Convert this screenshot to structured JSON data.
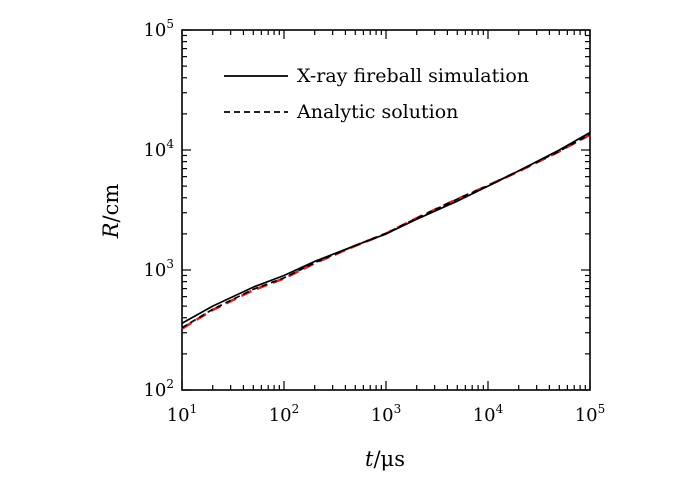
{
  "chart_data": {
    "type": "line",
    "xlabel_italic": "t",
    "xlabel_rest": "/μs",
    "ylabel_italic": "R",
    "ylabel_rest": "/cm",
    "x_scale": "log",
    "y_scale": "log",
    "xlim": [
      10,
      100000
    ],
    "ylim": [
      100,
      100000
    ],
    "grid": false,
    "legend_position": "top-left",
    "x_ticks": [
      {
        "base": "10",
        "exp": "1",
        "value": 10
      },
      {
        "base": "10",
        "exp": "2",
        "value": 100
      },
      {
        "base": "10",
        "exp": "3",
        "value": 1000
      },
      {
        "base": "10",
        "exp": "4",
        "value": 10000
      },
      {
        "base": "10",
        "exp": "5",
        "value": 100000
      }
    ],
    "y_ticks": [
      {
        "base": "10",
        "exp": "2",
        "value": 100
      },
      {
        "base": "10",
        "exp": "3",
        "value": 1000
      },
      {
        "base": "10",
        "exp": "4",
        "value": 10000
      },
      {
        "base": "10",
        "exp": "5",
        "value": 100000
      }
    ],
    "series": [
      {
        "name": "X-ray fireball simulation",
        "color": "#000000",
        "style": "solid",
        "x": [
          10,
          20,
          50,
          100,
          200,
          500,
          1000,
          2000,
          5000,
          10000,
          20000,
          50000,
          100000
        ],
        "y": [
          360,
          500,
          720,
          900,
          1180,
          1600,
          2000,
          2650,
          3750,
          5000,
          6700,
          10000,
          14000
        ]
      },
      {
        "name": "Analytic solution",
        "color": "#000000",
        "style": "dashed",
        "x": [
          10,
          20,
          50,
          100,
          200,
          500,
          1000,
          2000,
          5000,
          10000,
          20000,
          50000,
          100000
        ],
        "y": [
          330,
          470,
          690,
          860,
          1150,
          1600,
          2020,
          2700,
          3900,
          5050,
          6700,
          9800,
          13500
        ]
      },
      {
        "name": "",
        "color": "#e02020",
        "style": "dashed",
        "x": [
          10,
          20,
          50,
          100,
          200,
          500,
          1000,
          2000,
          5000,
          10000,
          20000,
          50000,
          100000
        ],
        "y": [
          325,
          465,
          680,
          850,
          1140,
          1590,
          2010,
          2700,
          3900,
          5050,
          6650,
          9750,
          13400
        ]
      }
    ]
  }
}
